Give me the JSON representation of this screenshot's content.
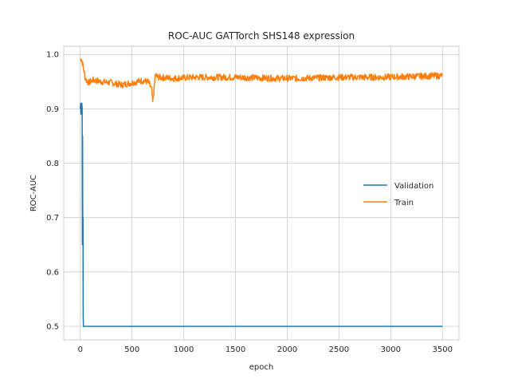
{
  "chart_data": {
    "type": "line",
    "title": "ROC-AUC GATTorch SHS148 expression",
    "xlabel": "epoch",
    "ylabel": "ROC-AUC",
    "xlim": [
      -160,
      3660
    ],
    "ylim": [
      0.475,
      1.015
    ],
    "xticks": [
      0,
      500,
      1000,
      1500,
      2000,
      2500,
      3000,
      3500
    ],
    "yticks": [
      0.5,
      0.6,
      0.7,
      0.8,
      0.9,
      1.0
    ],
    "ytick_labels": [
      "0.5",
      "0.6",
      "0.7",
      "0.8",
      "0.9",
      "1.0"
    ],
    "grid": true,
    "legend_position": "center-right",
    "series": [
      {
        "name": "Validation",
        "color": "#1f77b4",
        "points": [
          [
            0,
            0.9
          ],
          [
            3,
            0.91
          ],
          [
            6,
            0.89
          ],
          [
            9,
            0.91
          ],
          [
            12,
            0.9
          ],
          [
            15,
            0.91
          ],
          [
            18,
            0.9
          ],
          [
            20,
            0.65
          ],
          [
            22,
            0.85
          ],
          [
            24,
            0.66
          ],
          [
            26,
            0.7
          ],
          [
            28,
            0.52
          ],
          [
            30,
            0.5
          ],
          [
            3500,
            0.5
          ]
        ]
      },
      {
        "name": "Train",
        "color": "#ff7f0e",
        "points": [
          [
            0,
            0.99
          ],
          [
            10,
            0.993
          ],
          [
            20,
            0.985
          ],
          [
            35,
            0.97
          ],
          [
            50,
            0.955
          ],
          [
            80,
            0.948
          ],
          [
            120,
            0.953
          ],
          [
            200,
            0.95
          ],
          [
            300,
            0.948
          ],
          [
            400,
            0.944
          ],
          [
            500,
            0.948
          ],
          [
            600,
            0.952
          ],
          [
            660,
            0.949
          ],
          [
            690,
            0.935
          ],
          [
            700,
            0.912
          ],
          [
            710,
            0.93
          ],
          [
            725,
            0.962
          ],
          [
            750,
            0.958
          ],
          [
            900,
            0.956
          ],
          [
            1100,
            0.958
          ],
          [
            1300,
            0.958
          ],
          [
            1500,
            0.958
          ],
          [
            1700,
            0.957
          ],
          [
            1900,
            0.956
          ],
          [
            2100,
            0.956
          ],
          [
            2300,
            0.957
          ],
          [
            2500,
            0.958
          ],
          [
            2700,
            0.958
          ],
          [
            2900,
            0.958
          ],
          [
            3100,
            0.959
          ],
          [
            3300,
            0.96
          ],
          [
            3500,
            0.961
          ]
        ],
        "noise": 0.006
      }
    ]
  }
}
